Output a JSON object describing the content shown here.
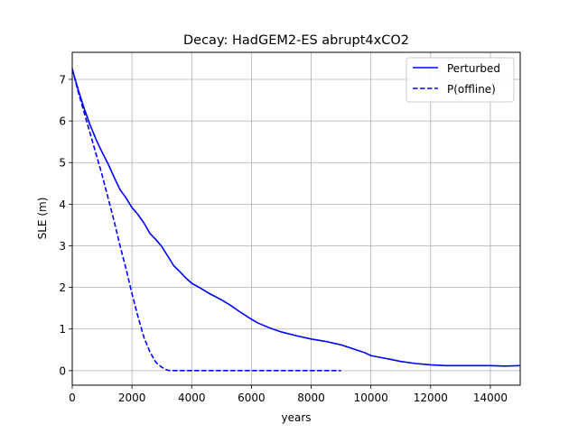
{
  "chart_data": {
    "type": "line",
    "title": "Decay: HadGEM2-ES abrupt4xCO2",
    "xlabel": "years",
    "ylabel": "SLE (m)",
    "xlim": [
      0,
      15000
    ],
    "ylim": [
      -0.35,
      7.65
    ],
    "xticks": [
      0,
      2000,
      4000,
      6000,
      8000,
      10000,
      12000,
      14000
    ],
    "yticks": [
      0,
      1,
      2,
      3,
      4,
      5,
      6,
      7
    ],
    "grid": true,
    "legend_position": "top-right",
    "series": [
      {
        "name": "Perturbed",
        "style": "solid",
        "color": "#0000ff",
        "x": [
          0,
          200,
          400,
          600,
          800,
          1000,
          1200,
          1400,
          1600,
          1800,
          2000,
          2200,
          2400,
          2600,
          2800,
          3000,
          3200,
          3400,
          3600,
          3800,
          4000,
          4300,
          4600,
          5000,
          5300,
          5600,
          5900,
          6200,
          6600,
          7000,
          7500,
          8000,
          8500,
          9000,
          9500,
          9800,
          10000,
          10300,
          10600,
          11000,
          11500,
          12000,
          12500,
          13000,
          14000,
          14500,
          15000
        ],
        "y": [
          7.25,
          6.75,
          6.3,
          5.9,
          5.55,
          5.25,
          4.97,
          4.65,
          4.35,
          4.15,
          3.92,
          3.75,
          3.55,
          3.3,
          3.15,
          2.98,
          2.75,
          2.52,
          2.38,
          2.23,
          2.1,
          1.98,
          1.85,
          1.7,
          1.57,
          1.42,
          1.28,
          1.15,
          1.03,
          0.93,
          0.84,
          0.76,
          0.7,
          0.62,
          0.5,
          0.43,
          0.36,
          0.32,
          0.28,
          0.22,
          0.17,
          0.14,
          0.12,
          0.12,
          0.12,
          0.11,
          0.12
        ]
      },
      {
        "name": "P(offline)",
        "style": "dashed",
        "color": "#0000ff",
        "x": [
          0,
          200,
          400,
          600,
          800,
          1000,
          1200,
          1400,
          1600,
          1800,
          2000,
          2200,
          2400,
          2600,
          2800,
          3000,
          3100,
          3200,
          3300,
          3500,
          4000,
          5000,
          6000,
          7000,
          8000,
          9000
        ],
        "y": [
          7.25,
          6.7,
          6.2,
          5.7,
          5.2,
          4.7,
          4.15,
          3.6,
          3.0,
          2.45,
          1.85,
          1.3,
          0.8,
          0.45,
          0.2,
          0.08,
          0.04,
          0.01,
          0.0,
          0.0,
          0.0,
          0.0,
          0.0,
          0.0,
          0.0,
          0.0
        ]
      }
    ]
  }
}
